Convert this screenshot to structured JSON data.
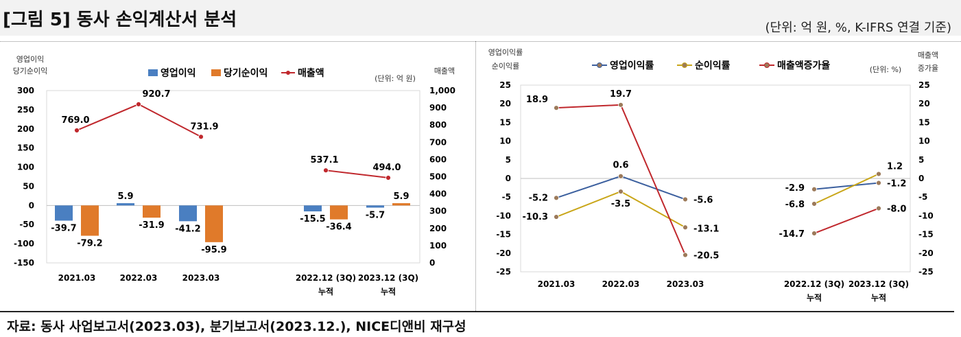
{
  "figure": {
    "title": "[그림 5] 동사 손익계산서 분석",
    "unit_note": "(단위: 억 원, %, K-IFRS 연결 기준)",
    "source": "자료: 동사 사업보고서(2023.03), 분기보고서(2023.12.), NICE디앤비 재구성"
  },
  "colors": {
    "operating_bar": "#4a7fc1",
    "net_bar": "#e07a2a",
    "sales_line": "#c0282d",
    "op_margin_line": "#3b5f9e",
    "net_margin_line": "#c9a619",
    "growth_line": "#c0282d"
  },
  "chart_data": [
    {
      "type": "bar",
      "left_axis_title": [
        "영업이익",
        "당기순이익"
      ],
      "right_axis_title": "매출액",
      "unit": "(단위: 억 원)",
      "categories": [
        [
          "2021.03"
        ],
        [
          "2022.03"
        ],
        [
          "2023.03"
        ],
        [
          "2022.12 (3Q)",
          "누적"
        ],
        [
          "2023.12 (3Q)",
          "누적"
        ]
      ],
      "series": [
        {
          "name": "영업이익",
          "kind": "bar",
          "axis": "left",
          "values": [
            -39.7,
            5.9,
            -41.2,
            -15.5,
            -5.7
          ],
          "labels": [
            "-39.7",
            "5.9",
            "-41.2",
            "-15.5",
            "-5.7"
          ]
        },
        {
          "name": "당기순이익",
          "kind": "bar",
          "axis": "left",
          "values": [
            -79.2,
            -31.9,
            -95.9,
            -36.4,
            5.9
          ],
          "labels": [
            "-79.2",
            "-31.9",
            "-95.9",
            "-36.4",
            "5.9"
          ]
        },
        {
          "name": "매출액",
          "kind": "line",
          "axis": "right",
          "values": [
            769.0,
            920.7,
            731.9,
            537.1,
            494.0
          ],
          "labels": [
            "769.0",
            "920.7",
            "731.9",
            "537.1",
            "494.0"
          ]
        }
      ],
      "ylim_left": [
        -150,
        300
      ],
      "yticks_left": [
        "300",
        "250",
        "200",
        "150",
        "100",
        "50",
        "0",
        "-50",
        "-100",
        "-150"
      ],
      "ylim_right": [
        0,
        1000
      ],
      "yticks_right": [
        "1,000",
        "900",
        "800",
        "700",
        "600",
        "500",
        "400",
        "300",
        "200",
        "100",
        "0"
      ]
    },
    {
      "type": "line",
      "left_axis_title": [
        "영업이익률",
        "순이익률"
      ],
      "right_axis_title": [
        "매출액",
        "증가율"
      ],
      "unit": "(단위: %)",
      "categories": [
        [
          "2021.03"
        ],
        [
          "2022.03"
        ],
        [
          "2023.03"
        ],
        [
          "2022.12 (3Q)",
          "누적"
        ],
        [
          "2023.12 (3Q)",
          "누적"
        ]
      ],
      "series": [
        {
          "name": "영업이익률",
          "values": [
            -5.2,
            0.6,
            -5.6,
            -2.9,
            -1.2
          ],
          "labels": [
            "-5.2",
            "0.6",
            "-5.6",
            "-2.9",
            "-1.2"
          ]
        },
        {
          "name": "순이익률",
          "values": [
            -10.3,
            -3.5,
            -13.1,
            -6.8,
            1.2
          ],
          "labels": [
            "-10.3",
            "-3.5",
            "-13.1",
            "-6.8",
            "1.2"
          ]
        },
        {
          "name": "매출액증가율",
          "values": [
            18.9,
            19.7,
            -20.5,
            -14.7,
            -8.0
          ],
          "labels": [
            "18.9",
            "19.7",
            "-20.5",
            "-14.7",
            "-8.0"
          ]
        }
      ],
      "ylim": [
        -25,
        25
      ],
      "yticks": [
        "25",
        "20",
        "15",
        "10",
        "5",
        "0",
        "-5",
        "-10",
        "-15",
        "-20",
        "-25"
      ]
    }
  ]
}
